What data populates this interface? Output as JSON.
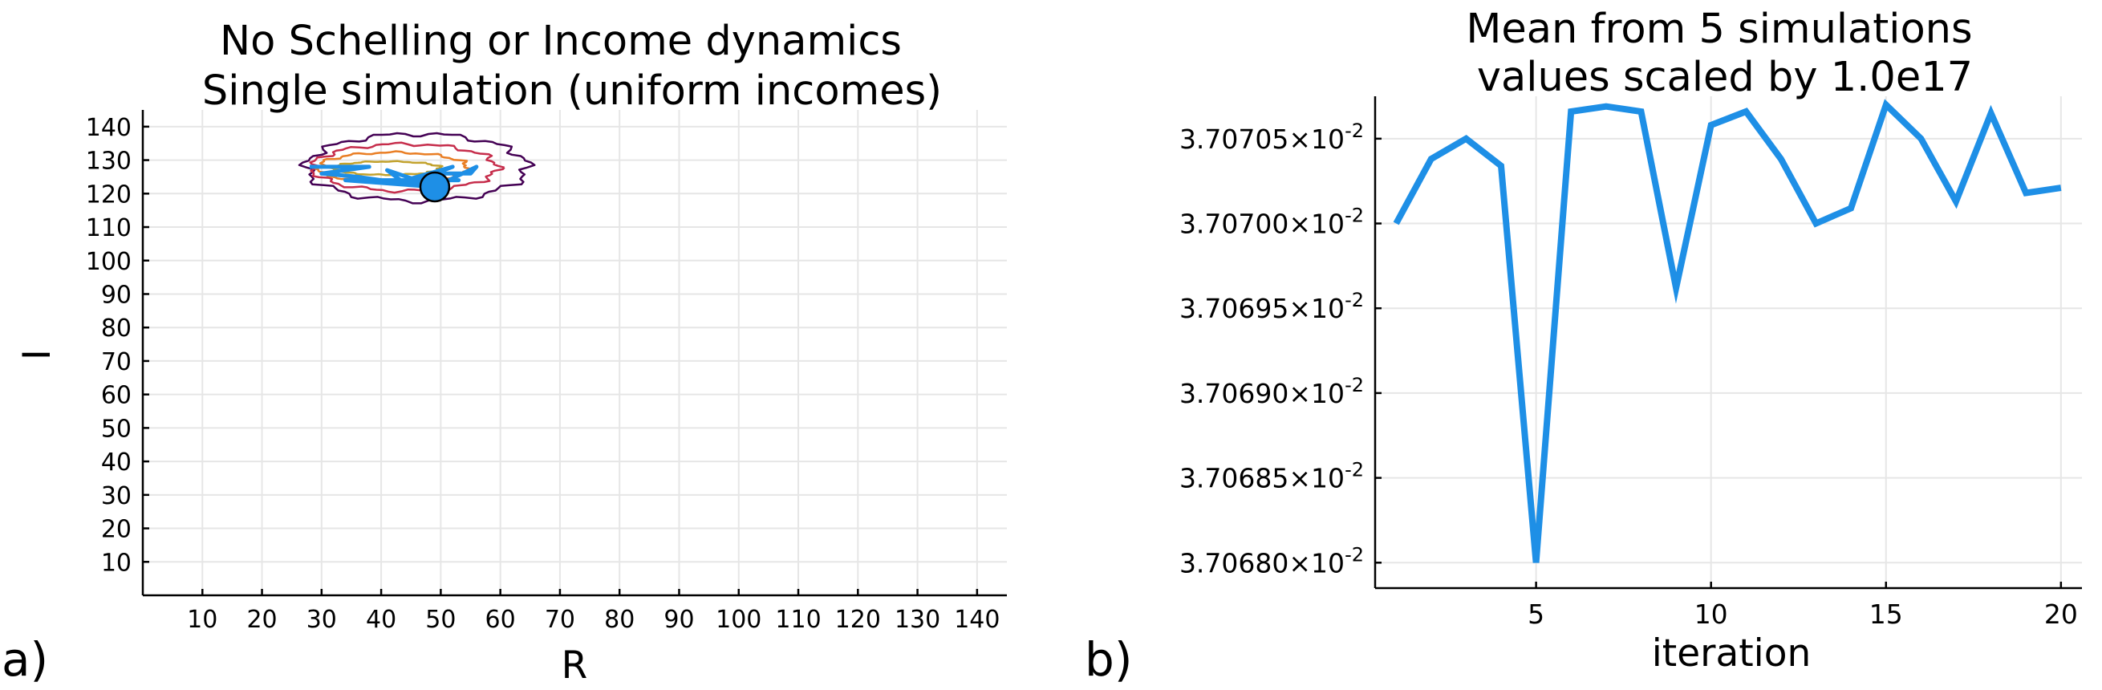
{
  "panel_labels": [
    "a)",
    "b)"
  ],
  "chart_data": [
    {
      "type": "scatter",
      "title": [
        "No Schelling or Income dynamics",
        "Single simulation (uniform incomes)"
      ],
      "xlabel": "R",
      "ylabel": "I",
      "xlim": [
        0,
        145
      ],
      "ylim": [
        0,
        145
      ],
      "xticks": [
        10,
        20,
        30,
        40,
        50,
        60,
        70,
        80,
        90,
        100,
        110,
        120,
        130,
        140
      ],
      "yticks": [
        10,
        20,
        30,
        40,
        50,
        60,
        70,
        80,
        90,
        100,
        110,
        120,
        130,
        140
      ],
      "grid": true,
      "contours": [
        {
          "color": "#440154",
          "cx": 46,
          "cy": 127.8,
          "rx": 18.5,
          "ry": 10
        },
        {
          "color": "#c62d4b",
          "cx": 44,
          "cy": 127.8,
          "rx": 15.5,
          "ry": 7
        },
        {
          "color": "#e97e24",
          "cx": 42,
          "cy": 127.8,
          "rx": 12.5,
          "ry": 4.5
        },
        {
          "color": "#c2a22d",
          "cx": 41,
          "cy": 127.6,
          "rx": 9,
          "ry": 2
        }
      ],
      "trajectory": {
        "color": "#1e8fe6",
        "points": [
          [
            28,
            128
          ],
          [
            38,
            128
          ],
          [
            30,
            126
          ],
          [
            36,
            125
          ],
          [
            44,
            123
          ],
          [
            41,
            127
          ],
          [
            46,
            124
          ],
          [
            52,
            128
          ],
          [
            43,
            123.5
          ],
          [
            50,
            123
          ],
          [
            48,
            126
          ],
          [
            55,
            126
          ],
          [
            56,
            128
          ],
          [
            49,
            122
          ],
          [
            34,
            124
          ],
          [
            53,
            124
          ],
          [
            47,
            124
          ],
          [
            49,
            122
          ]
        ]
      },
      "marker": {
        "x": 49,
        "y": 122,
        "color": "#1e8fe6"
      }
    },
    {
      "type": "line",
      "title": [
        "Mean from 5 simulations",
        "values scaled by 1.0e17"
      ],
      "xlabel": "iteration",
      "ylabel": "",
      "xlim": [
        0.4,
        20.6
      ],
      "ylim": [
        3.706785,
        3.707075
      ],
      "xticks": [
        5,
        10,
        15,
        20
      ],
      "yticks": [
        {
          "value": 3.7068,
          "mantissa": "3.70680",
          "exp": "-2"
        },
        {
          "value": 3.70685,
          "mantissa": "3.70685",
          "exp": "-2"
        },
        {
          "value": 3.7069,
          "mantissa": "3.70690",
          "exp": "-2"
        },
        {
          "value": 3.70695,
          "mantissa": "3.70695",
          "exp": "-2"
        },
        {
          "value": 3.707,
          "mantissa": "3.70700",
          "exp": "-2"
        },
        {
          "value": 3.70705,
          "mantissa": "3.70705",
          "exp": "-2"
        }
      ],
      "grid": true,
      "series": [
        {
          "color": "#1e8fe6",
          "x": [
            1,
            2,
            3,
            4,
            5,
            6,
            7,
            8,
            9,
            10,
            11,
            12,
            13,
            14,
            15,
            16,
            17,
            18,
            19,
            20
          ],
          "y": [
            3.707,
            3.707038,
            3.70705,
            3.707034,
            3.7068,
            3.707066,
            3.707069,
            3.707066,
            3.706962,
            3.707058,
            3.707066,
            3.707038,
            3.707,
            3.707009,
            3.70707,
            3.70705,
            3.707013,
            3.707065,
            3.707018,
            3.707021
          ]
        }
      ]
    }
  ]
}
